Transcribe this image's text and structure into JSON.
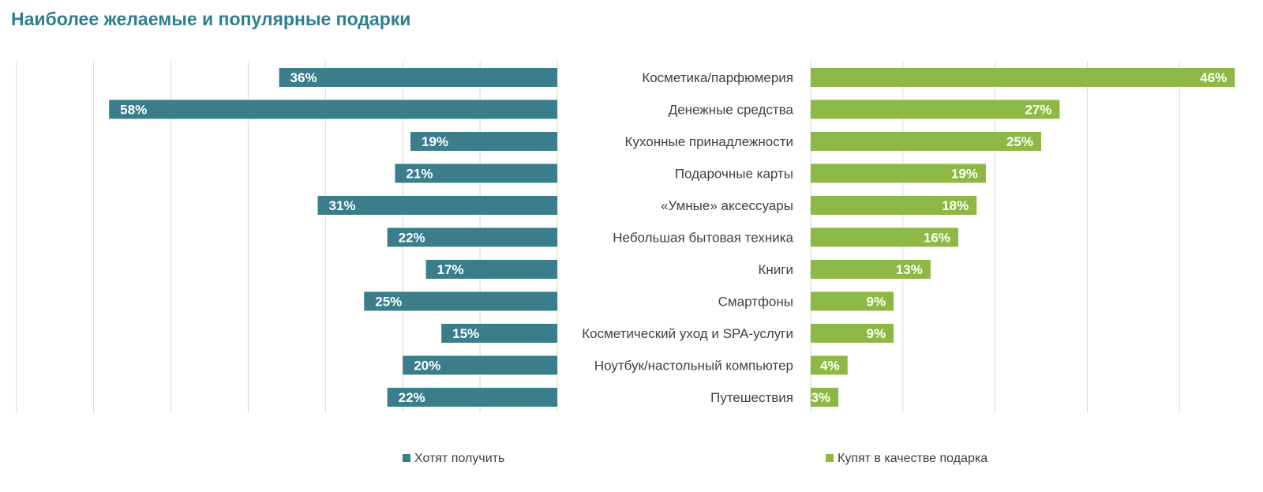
{
  "title": "Наиболее желаемые и популярные подарки",
  "colors": {
    "title": "#2e7f8c",
    "want": "#3a7e8b",
    "buy": "#8db844",
    "grid": "#d9d9d9",
    "text": "#404040"
  },
  "chart_data": {
    "type": "bar",
    "orientation": "horizontal-butterfly",
    "title": "Наиболее желаемые и популярные подарки",
    "categories": [
      "Косметика/парфюмерия",
      "Денежные средства",
      "Кухонные принадлежности",
      "Подарочные карты",
      "«Умные» аксессуары",
      "Небольшая бытовая техника",
      "Книги",
      "Смартфоны",
      "Косметический уход и SPA-услуги",
      "Ноутбук/настольный компьютер",
      "Путешествия"
    ],
    "series": [
      {
        "name": "Хотят получить",
        "values": [
          36,
          58,
          19,
          21,
          31,
          22,
          17,
          25,
          15,
          20,
          22
        ],
        "labels": [
          "36%",
          "58%",
          "19%",
          "21%",
          "31%",
          "22%",
          "17%",
          "25%",
          "15%",
          "20%",
          "22%"
        ]
      },
      {
        "name": "Купят в качестве подарка",
        "values": [
          46,
          27,
          25,
          19,
          18,
          16,
          13,
          9,
          9,
          4,
          3
        ],
        "labels": [
          "46%",
          "27%",
          "25%",
          "19%",
          "18%",
          "16%",
          "13%",
          "9%",
          "9%",
          "4%",
          "3%"
        ]
      }
    ],
    "left_axis_range": [
      0,
      70
    ],
    "right_axis_range": [
      0,
      50
    ],
    "grid": true,
    "legend_position": "bottom"
  }
}
